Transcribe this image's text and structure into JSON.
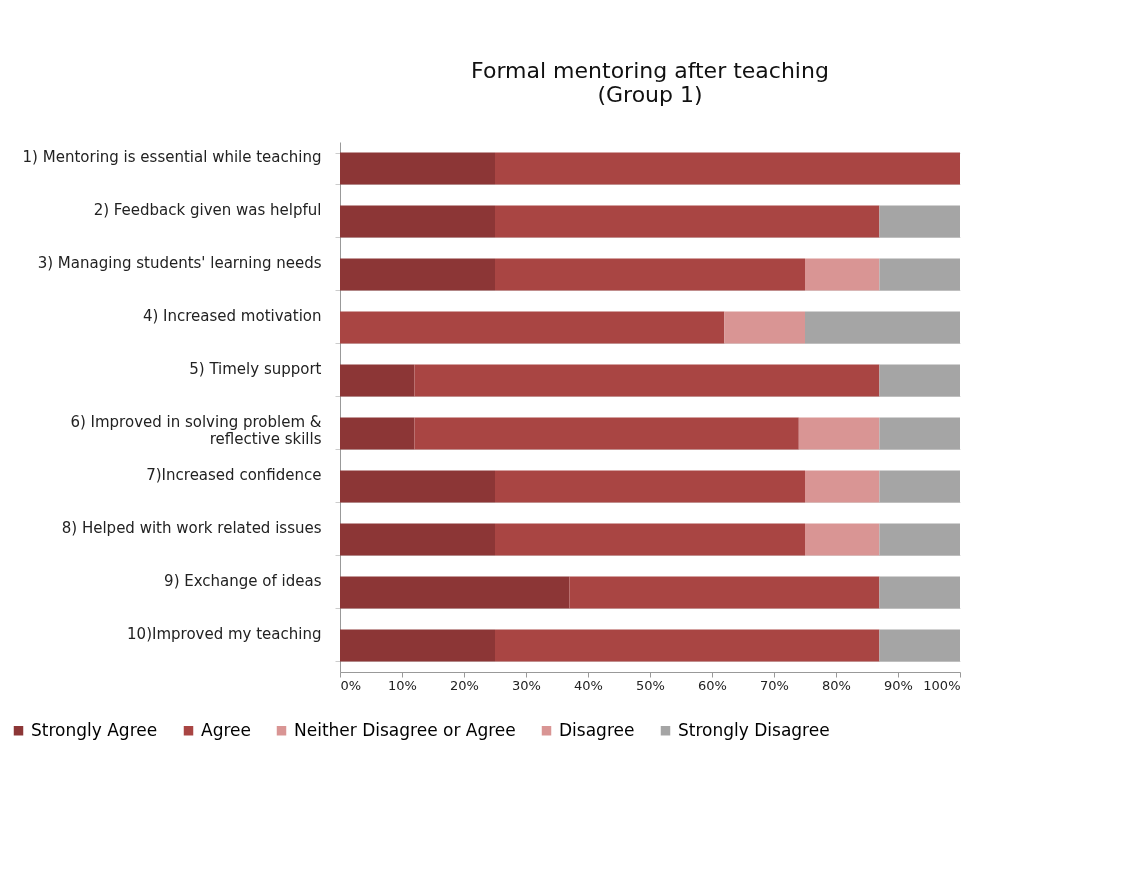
{
  "chart_data": {
    "type": "bar",
    "orientation": "horizontal",
    "stacked": true,
    "title": "Formal mentoring after teaching\n(Group 1)",
    "categories": [
      "1) Mentoring is essential while teaching",
      "2) Feedback given was helpful",
      "3) Managing students' learning needs",
      "4) Increased motivation ",
      "5) Timely support",
      "6) Improved in solving problem & reflective skills",
      "7)Increased confidence",
      "8) Helped with work related issues",
      "9) Exchange of ideas",
      "10)Improved my teaching"
    ],
    "series": [
      {
        "name": "Strongly Agree",
        "color": "#8c3636",
        "values": [
          25,
          25,
          25,
          0,
          12,
          12,
          25,
          25,
          37,
          25
        ]
      },
      {
        "name": "Agree",
        "color": "#a94543",
        "values": [
          75,
          62,
          50,
          62,
          75,
          62,
          50,
          50,
          50,
          62
        ]
      },
      {
        "name": "Neither Disagree or Agree",
        "color": "#d99594",
        "values": [
          0,
          0,
          12,
          13,
          0,
          13,
          12,
          12,
          0,
          0
        ]
      },
      {
        "name": "Disagree",
        "color": "#d99594",
        "values": [
          0,
          0,
          0,
          0,
          0,
          0,
          0,
          0,
          0,
          0
        ]
      },
      {
        "name": "Strongly Disagree",
        "color": "#a5a5a5",
        "values": [
          0,
          13,
          13,
          25,
          13,
          13,
          13,
          13,
          13,
          13
        ]
      }
    ],
    "xlim": [
      0,
      100
    ],
    "xticks": [
      {
        "value": 0,
        "label": "0%"
      },
      {
        "value": 10,
        "label": "10%"
      },
      {
        "value": 20,
        "label": "20%"
      },
      {
        "value": 30,
        "label": "30%"
      },
      {
        "value": 40,
        "label": "40%"
      },
      {
        "value": 50,
        "label": "50%"
      },
      {
        "value": 60,
        "label": "60%"
      },
      {
        "value": 70,
        "label": "70%"
      },
      {
        "value": 80,
        "label": "80%"
      },
      {
        "value": 90,
        "label": "90%"
      },
      {
        "value": 100,
        "label": "100%"
      }
    ],
    "grid": "y",
    "legend": "bottom"
  }
}
